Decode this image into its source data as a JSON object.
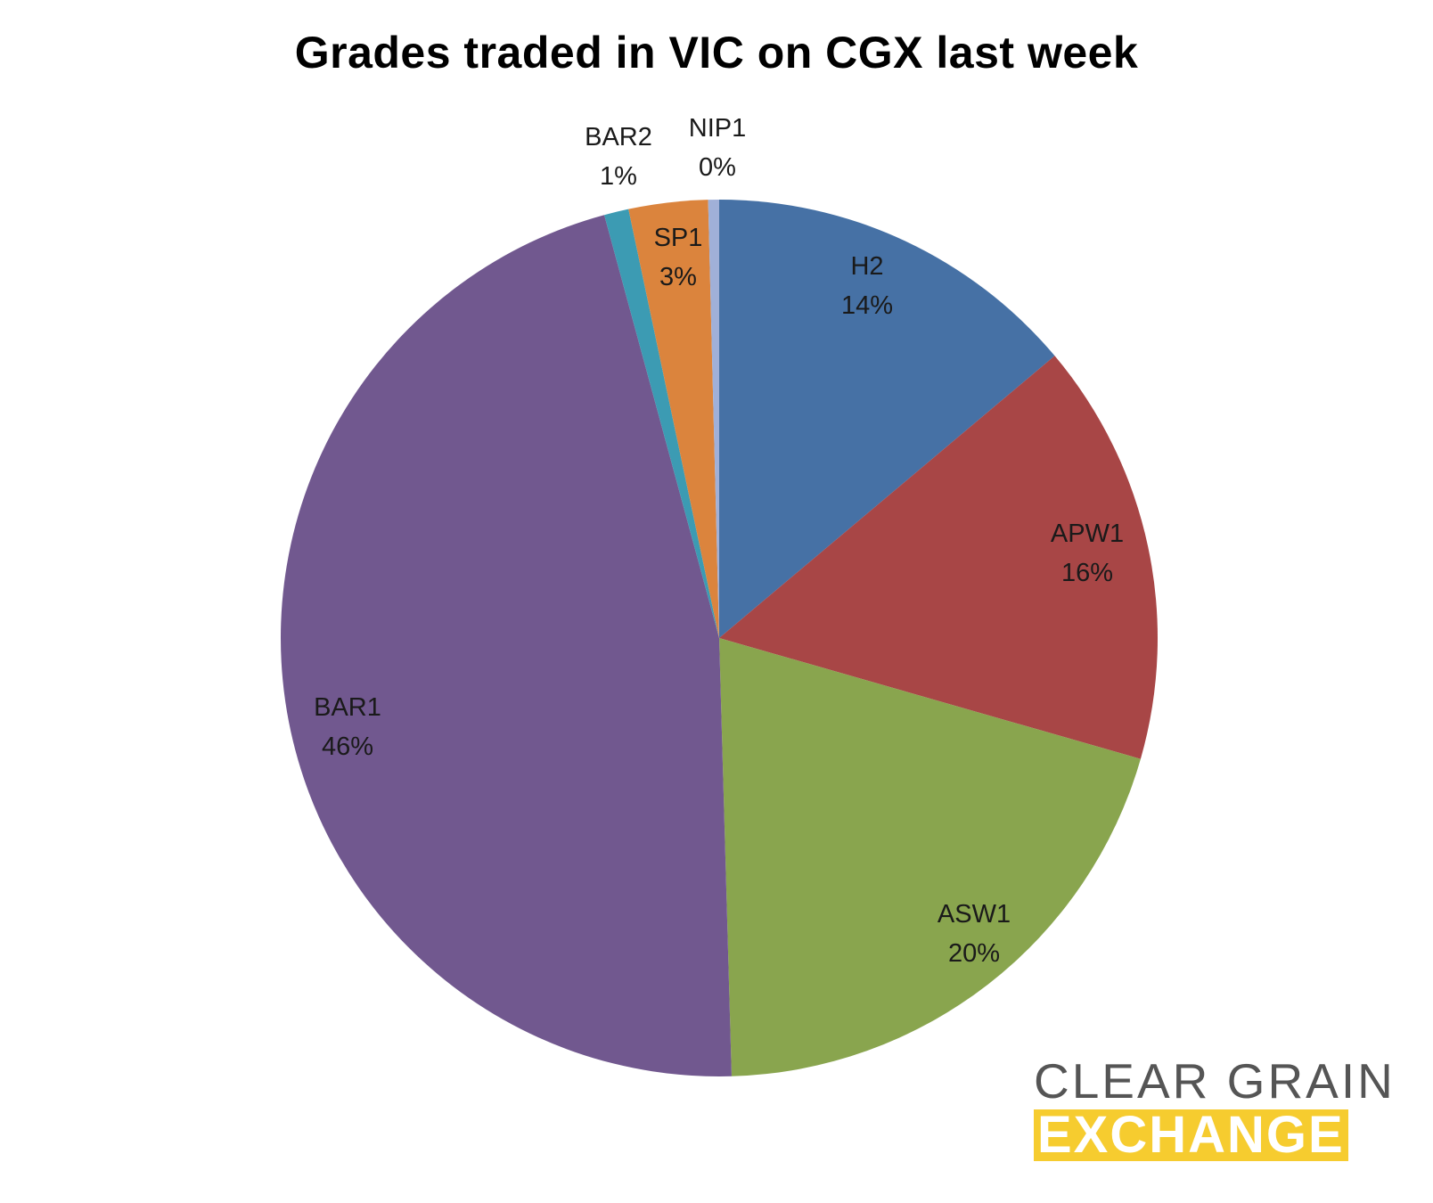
{
  "chart_data": {
    "type": "pie",
    "title": "Grades traded in VIC on CGX last week",
    "slices": [
      {
        "label": "H2",
        "pct_label": "14%",
        "value": 13.8,
        "color": "#4671a5"
      },
      {
        "label": "APW1",
        "pct_label": "16%",
        "value": 15.5,
        "color": "#a84646"
      },
      {
        "label": "ASW1",
        "pct_label": "20%",
        "value": 20.0,
        "color": "#89a54e"
      },
      {
        "label": "BAR1",
        "pct_label": "46%",
        "value": 46.0,
        "color": "#71588f"
      },
      {
        "label": "BAR2",
        "pct_label": "1%",
        "value": 0.9,
        "color": "#3c9bb3"
      },
      {
        "label": "SP1",
        "pct_label": "3%",
        "value": 2.9,
        "color": "#db843d"
      },
      {
        "label": "NIP1",
        "pct_label": "0%",
        "value": 0.4,
        "color": "#a0b0d8"
      }
    ],
    "start_angle": "top, clockwise",
    "legend": "none"
  },
  "logo": {
    "line1": "CLEAR GRAIN",
    "line2": "EXCHANGE",
    "accent_color": "#f6cc2f"
  }
}
